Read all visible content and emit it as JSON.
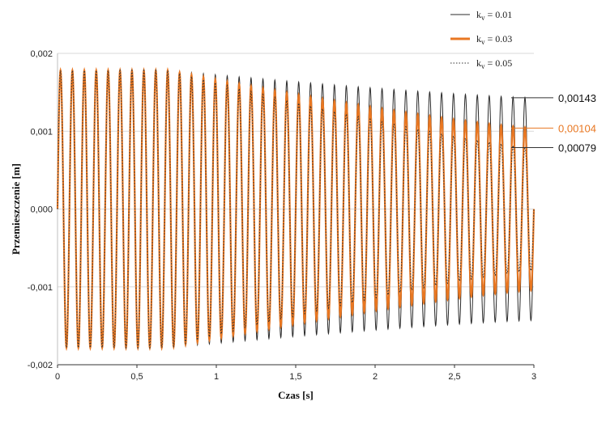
{
  "chart_data": {
    "type": "line",
    "title": "",
    "xlabel": "Czas [s]",
    "ylabel": "Przemieszczenie [m]",
    "xlim": [
      0,
      3
    ],
    "ylim": [
      -0.002,
      0.002
    ],
    "x_ticks": [
      0,
      0.5,
      1,
      1.5,
      2,
      2.5,
      3
    ],
    "x_tick_labels": [
      "0",
      "0,5",
      "1",
      "1,5",
      "2",
      "2,5",
      "3"
    ],
    "y_ticks": [
      -0.002,
      -0.001,
      0,
      0.001,
      0.002
    ],
    "y_tick_labels": [
      "-0,002",
      "-0,001",
      "0,000",
      "0,001",
      "0,002"
    ],
    "grid": "horizontal",
    "legend_position": "top-right",
    "oscillation": {
      "cycles": 40,
      "start_amplitude": 0.00178,
      "steady_from_time": 0.7
    },
    "series": [
      {
        "name_main": "k",
        "name_sub": "v",
        "name_rest": " = 0.01",
        "color": "#2b2b2b",
        "style": "solid",
        "final_amplitude": 0.00143
      },
      {
        "name_main": "k",
        "name_sub": "v",
        "name_rest": " = 0.03",
        "color": "#e87722",
        "style": "solid-thick",
        "final_amplitude": 0.00104
      },
      {
        "name_main": "k",
        "name_sub": "v",
        "name_rest": " = 0.05",
        "color": "#333333",
        "style": "dotted",
        "final_amplitude": 0.00079
      }
    ],
    "annotations": [
      {
        "text": "0,00143",
        "value": 0.00143,
        "color": "#111111"
      },
      {
        "text": "0,00104",
        "value": 0.00104,
        "color": "#e87722"
      },
      {
        "text": "0,00079",
        "value": 0.00079,
        "color": "#111111"
      }
    ]
  }
}
